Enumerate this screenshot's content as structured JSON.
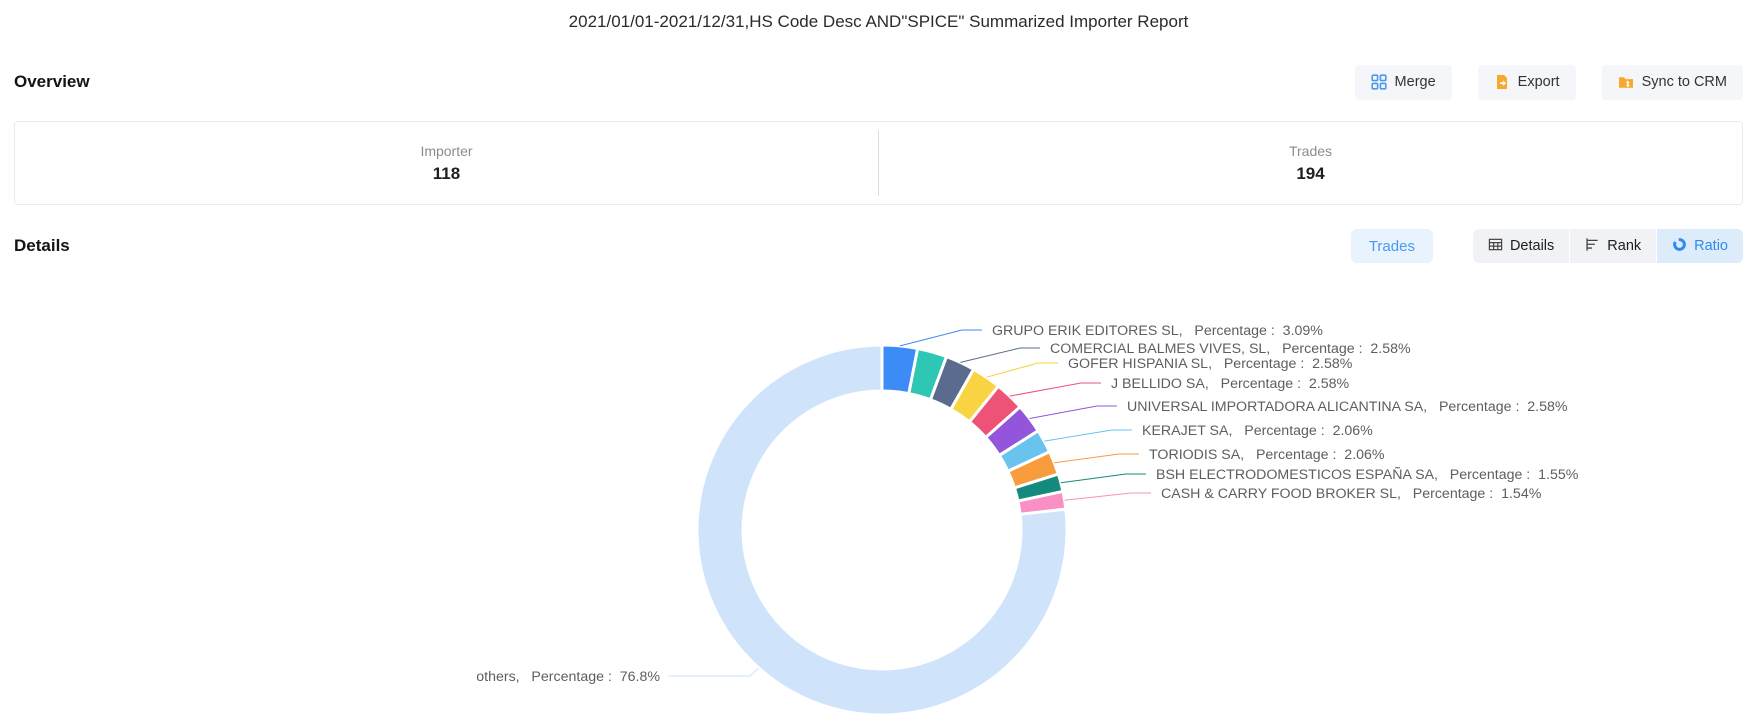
{
  "title": "2021/01/01-2021/12/31,HS Code Desc AND\"SPICE\" Summarized Importer Report",
  "overview": {
    "heading": "Overview",
    "buttons": {
      "merge": "Merge",
      "export": "Export",
      "sync": "Sync to CRM"
    },
    "stats": [
      {
        "label": "Importer",
        "value": "118"
      },
      {
        "label": "Trades",
        "value": "194"
      }
    ]
  },
  "details": {
    "heading": "Details",
    "trades_button": "Trades",
    "view_buttons": {
      "details": "Details",
      "rank": "Rank",
      "ratio": "Ratio"
    },
    "active_view": "Ratio"
  },
  "colors": {
    "accent_blue": "#4b98f0",
    "button_bg": "#f5f6fa",
    "active_tab_bg": "#ddecfb",
    "icon_orange": "#f7a82d"
  },
  "chart_data": {
    "type": "pie",
    "variant": "donut",
    "legend_position": "none",
    "label_term": "Percentage",
    "slices": [
      {
        "name": "GRUPO ERIK EDITORES SL",
        "pct": 3.09,
        "pct_label": "3.09%",
        "color": "#3d8bf7",
        "label_visible": true
      },
      {
        "name": "",
        "pct": 2.58,
        "pct_label": "2.58%",
        "color": "#2ec7b4",
        "label_visible": false
      },
      {
        "name": "COMERCIAL BALMES VIVES, SL",
        "pct": 2.58,
        "pct_label": "2.58%",
        "color": "#5a6b8e",
        "label_visible": true
      },
      {
        "name": "GOFER HISPANIA SL",
        "pct": 2.58,
        "pct_label": "2.58%",
        "color": "#fad342",
        "label_visible": true
      },
      {
        "name": "J BELLIDO SA",
        "pct": 2.58,
        "pct_label": "2.58%",
        "color": "#ee5377",
        "label_visible": true
      },
      {
        "name": "UNIVERSAL IMPORTADORA ALICANTINA SA",
        "pct": 2.58,
        "pct_label": "2.58%",
        "color": "#9355db",
        "label_visible": true
      },
      {
        "name": "KERAJET SA",
        "pct": 2.06,
        "pct_label": "2.06%",
        "color": "#69c3ef",
        "label_visible": true
      },
      {
        "name": "TORIODIS SA",
        "pct": 2.06,
        "pct_label": "2.06%",
        "color": "#f99c3d",
        "label_visible": true
      },
      {
        "name": "BSH ELECTRODOMESTICOS ESPAÑA SA",
        "pct": 1.55,
        "pct_label": "1.55%",
        "color": "#148a7e",
        "label_visible": true
      },
      {
        "name": "CASH & CARRY FOOD BROKER SL",
        "pct": 1.54,
        "pct_label": "1.54%",
        "color": "#f98fc3",
        "label_visible": true
      },
      {
        "name": "others",
        "pct": 76.8,
        "pct_label": "76.8%",
        "color": "#cfe3fb",
        "label_visible": true
      }
    ]
  }
}
